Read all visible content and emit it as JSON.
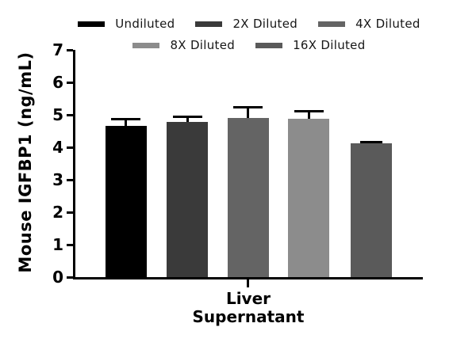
{
  "chart_data": {
    "type": "bar",
    "title": "",
    "ylabel": "Mouse IGFBP1 (ng/mL)",
    "xlabel": "Liver Supernatant",
    "xlabel_lines": [
      "Liver",
      "Supernatant"
    ],
    "categories": [
      "Liver Supernatant"
    ],
    "series": [
      {
        "name": "Undiluted",
        "color": "#000000",
        "value": 4.66,
        "error_plus": 0.2
      },
      {
        "name": "2X Diluted",
        "color": "#3a3a3a",
        "value": 4.79,
        "error_plus": 0.14
      },
      {
        "name": "4X Diluted",
        "color": "#646464",
        "value": 4.9,
        "error_plus": 0.33
      },
      {
        "name": "8X Diluted",
        "color": "#8c8c8c",
        "value": 4.89,
        "error_plus": 0.22
      },
      {
        "name": "16X Diluted",
        "color": "#5a5a5a",
        "value": 4.11,
        "error_plus": 0.06
      }
    ],
    "ylim": [
      0,
      7
    ],
    "ytick_step": 1,
    "yticks": [
      0,
      1,
      2,
      3,
      4,
      5,
      6,
      7
    ],
    "grid": false,
    "legend_position": "top",
    "legend_rows": [
      [
        0,
        1,
        2
      ],
      [
        3,
        4
      ]
    ],
    "error_bar_style": "upper-with-cap",
    "axis_color": "#000000",
    "background_color": "#ffffff"
  }
}
